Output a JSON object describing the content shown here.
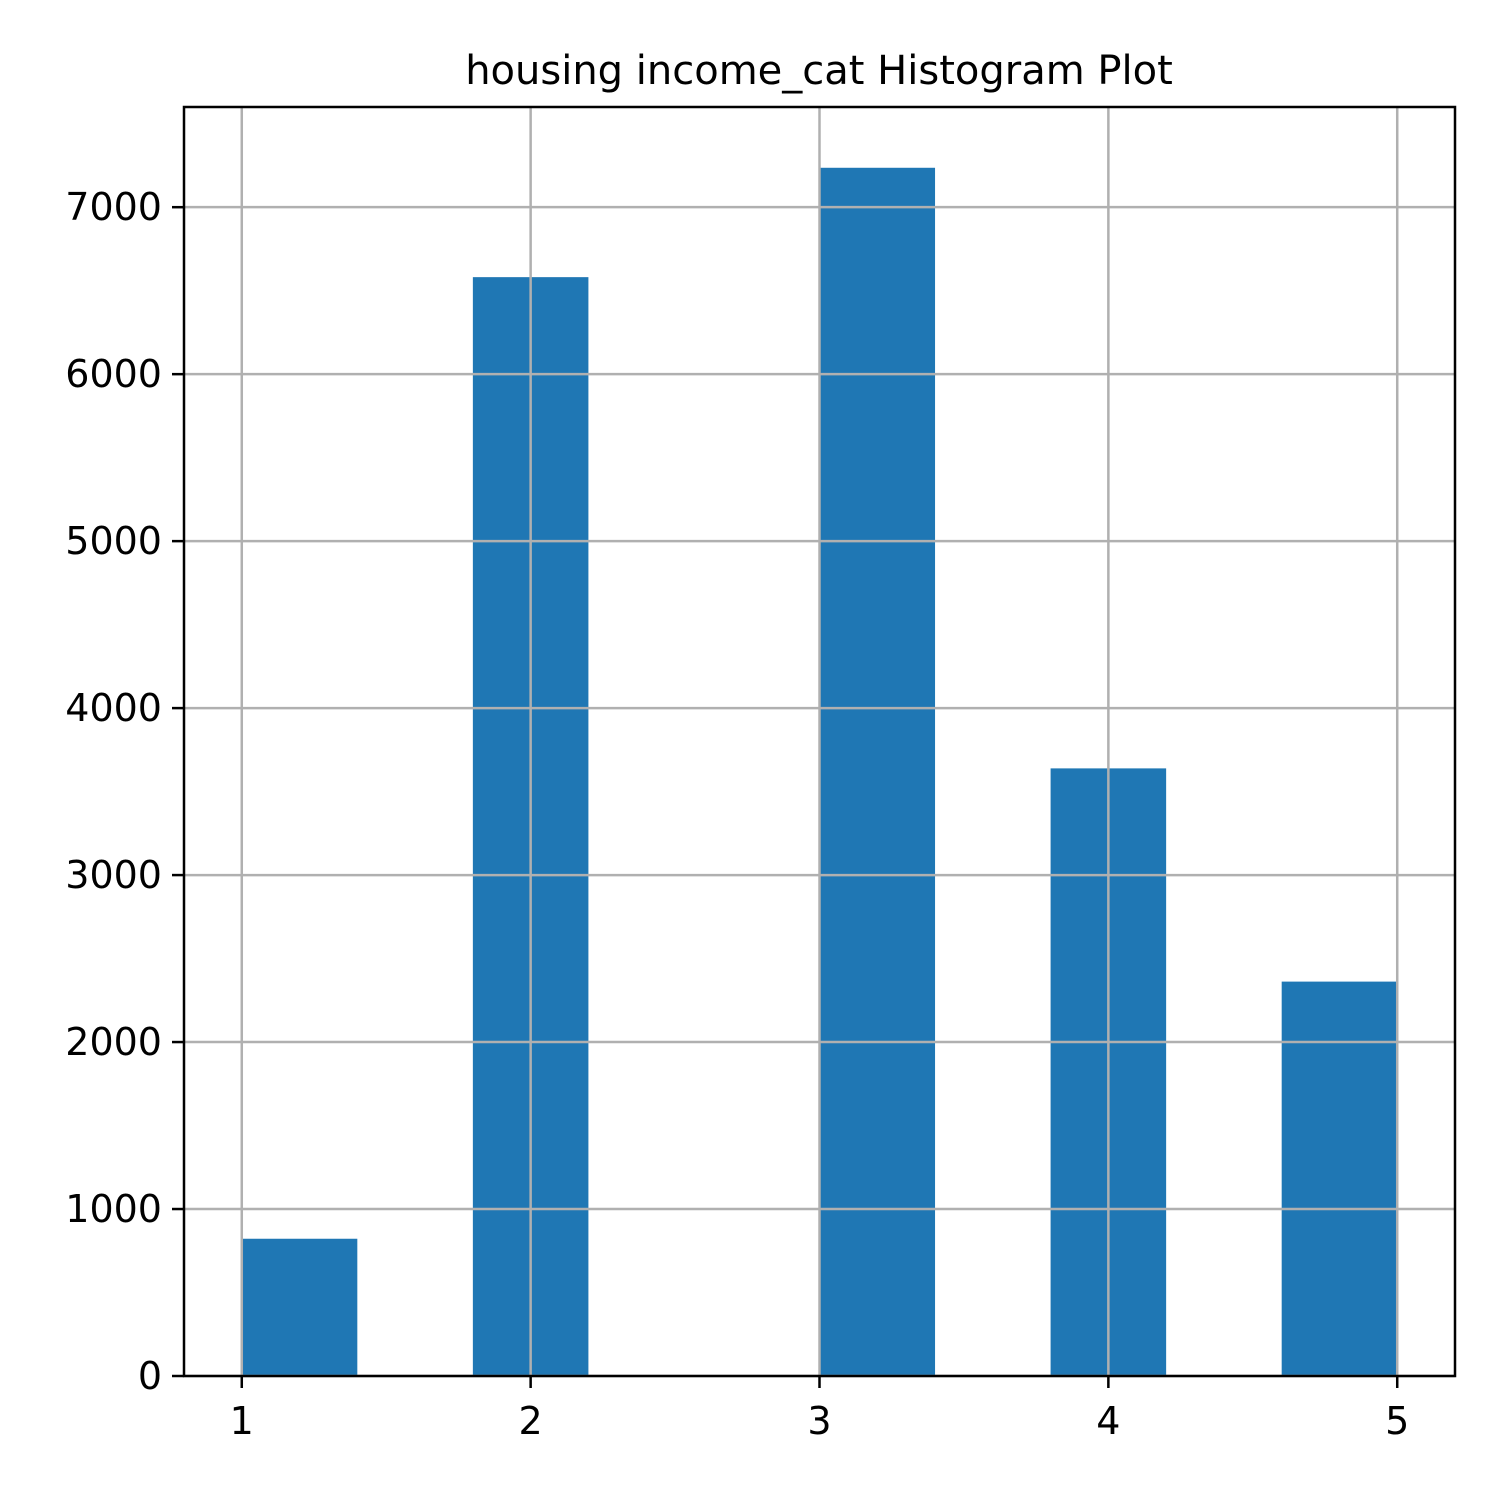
{
  "chart_data": {
    "type": "bar",
    "title": "housing income_cat Histogram Plot",
    "xlabel": "",
    "ylabel": "",
    "bar_color": "#1f77b4",
    "grid": true,
    "xlim": [
      0.8,
      5.2
    ],
    "ylim": [
      0,
      7600
    ],
    "xticks": [
      1,
      2,
      3,
      4,
      5
    ],
    "yticks": [
      0,
      1000,
      2000,
      3000,
      4000,
      5000,
      6000,
      7000
    ],
    "bins": [
      {
        "x0": 1.0,
        "x1": 1.4,
        "count": 822
      },
      {
        "x0": 1.4,
        "x1": 1.8,
        "count": 0
      },
      {
        "x0": 1.8,
        "x1": 2.2,
        "count": 6581
      },
      {
        "x0": 2.2,
        "x1": 2.6,
        "count": 0
      },
      {
        "x0": 2.6,
        "x1": 3.0,
        "count": 0
      },
      {
        "x0": 3.0,
        "x1": 3.4,
        "count": 7236
      },
      {
        "x0": 3.4,
        "x1": 3.8,
        "count": 0
      },
      {
        "x0": 3.8,
        "x1": 4.2,
        "count": 3639
      },
      {
        "x0": 4.2,
        "x1": 4.6,
        "count": 0
      },
      {
        "x0": 4.6,
        "x1": 5.0,
        "count": 2362
      }
    ]
  }
}
